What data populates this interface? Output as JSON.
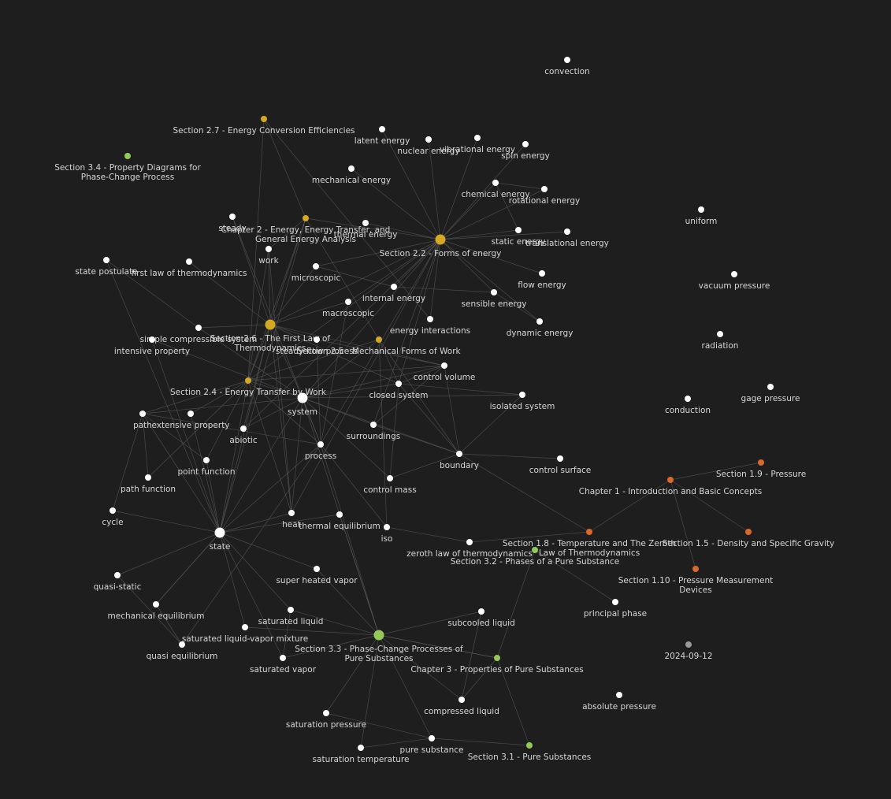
{
  "graph": {
    "colors": {
      "note": "#ffffff",
      "chapter2": "#d4a823",
      "chapter3": "#94c95a",
      "chapter1": "#d9692b",
      "tag": "#9a9a9a",
      "edge": "#5a5a5a",
      "label": "#d6d6d6",
      "background": "#1e1e1e"
    },
    "nodes": [
      {
        "id": "convection",
        "lines": [
          "convection"
        ],
        "group": "note"
      },
      {
        "id": "sec27",
        "lines": [
          "Section 2.7 - Energy Conversion Efficiencies"
        ],
        "group": "chapter2"
      },
      {
        "id": "latent",
        "lines": [
          "latent energy"
        ],
        "group": "note"
      },
      {
        "id": "nuclear",
        "lines": [
          "nuclear energy"
        ],
        "group": "note"
      },
      {
        "id": "vibrational",
        "lines": [
          "vibrational energy"
        ],
        "group": "note"
      },
      {
        "id": "spin",
        "lines": [
          "spin energy"
        ],
        "group": "note"
      },
      {
        "id": "sec34",
        "lines": [
          "Section 3.4 - Property Diagrams for",
          "Phase-Change Process"
        ],
        "group": "chapter3"
      },
      {
        "id": "mechanical_energy",
        "lines": [
          "mechanical energy"
        ],
        "group": "note"
      },
      {
        "id": "chemical",
        "lines": [
          "chemical energy"
        ],
        "group": "note"
      },
      {
        "id": "rotational",
        "lines": [
          "rotational energy"
        ],
        "group": "note"
      },
      {
        "id": "uniform",
        "lines": [
          "uniform"
        ],
        "group": "note"
      },
      {
        "id": "steady",
        "lines": [
          "steady"
        ],
        "group": "note"
      },
      {
        "id": "ch2",
        "lines": [
          "Chapter 2 - Energy, Energy Transfer, and",
          "General Energy Analysis"
        ],
        "group": "chapter2"
      },
      {
        "id": "thermal_energy",
        "lines": [
          "thermal energy"
        ],
        "group": "note"
      },
      {
        "id": "static",
        "lines": [
          "static energy"
        ],
        "group": "note"
      },
      {
        "id": "translational",
        "lines": [
          "translational energy"
        ],
        "group": "note"
      },
      {
        "id": "sec22",
        "lines": [
          "Section 2.2 - Forms of energy"
        ],
        "group": "chapter2",
        "big": true
      },
      {
        "id": "work",
        "lines": [
          "work"
        ],
        "group": "note"
      },
      {
        "id": "state_postulate",
        "lines": [
          "state postulate"
        ],
        "group": "note"
      },
      {
        "id": "first_law",
        "lines": [
          "first law of thermodynamics"
        ],
        "group": "note"
      },
      {
        "id": "microscopic",
        "lines": [
          "microscopic"
        ],
        "group": "note"
      },
      {
        "id": "flow_energy",
        "lines": [
          "flow energy"
        ],
        "group": "note"
      },
      {
        "id": "vacuum",
        "lines": [
          "vacuum pressure"
        ],
        "group": "note"
      },
      {
        "id": "internal",
        "lines": [
          "internal energy"
        ],
        "group": "note"
      },
      {
        "id": "sensible",
        "lines": [
          "sensible energy"
        ],
        "group": "note"
      },
      {
        "id": "macroscopic",
        "lines": [
          "macroscopic"
        ],
        "group": "note"
      },
      {
        "id": "energy_interactions",
        "lines": [
          "energy interactions"
        ],
        "group": "note"
      },
      {
        "id": "dynamic",
        "lines": [
          "dynamic energy"
        ],
        "group": "note"
      },
      {
        "id": "radiation",
        "lines": [
          "radiation"
        ],
        "group": "note"
      },
      {
        "id": "simple_comp",
        "lines": [
          "simple compressible system"
        ],
        "group": "note"
      },
      {
        "id": "sec26",
        "lines": [
          "Section 2.6 - The First Law of",
          "Thermodynamics"
        ],
        "group": "chapter2",
        "big": true
      },
      {
        "id": "steady_flow",
        "lines": [
          "steady-flow process"
        ],
        "group": "note"
      },
      {
        "id": "sec25",
        "lines": [
          "Section 2.5 - Mechanical Forms of Work"
        ],
        "group": "chapter2"
      },
      {
        "id": "intensive",
        "lines": [
          "intensive property"
        ],
        "group": "note"
      },
      {
        "id": "control_volume",
        "lines": [
          "control volume"
        ],
        "group": "note"
      },
      {
        "id": "sec24",
        "lines": [
          "Section 2.4 - Energy Transfer by Work"
        ],
        "group": "chapter2"
      },
      {
        "id": "closed_system",
        "lines": [
          "closed system"
        ],
        "group": "note"
      },
      {
        "id": "isolated",
        "lines": [
          "isolated system"
        ],
        "group": "note"
      },
      {
        "id": "gage",
        "lines": [
          "gage pressure"
        ],
        "group": "note"
      },
      {
        "id": "conduction",
        "lines": [
          "conduction"
        ],
        "group": "note"
      },
      {
        "id": "system",
        "lines": [
          "system"
        ],
        "group": "note",
        "big": true
      },
      {
        "id": "path",
        "lines": [
          "path"
        ],
        "group": "note"
      },
      {
        "id": "extensive",
        "lines": [
          "extensive property"
        ],
        "group": "note"
      },
      {
        "id": "abiotic",
        "lines": [
          "abiotic"
        ],
        "group": "note"
      },
      {
        "id": "surroundings",
        "lines": [
          "surroundings"
        ],
        "group": "note"
      },
      {
        "id": "process",
        "lines": [
          "process"
        ],
        "group": "note"
      },
      {
        "id": "boundary",
        "lines": [
          "boundary"
        ],
        "group": "note"
      },
      {
        "id": "control_surface",
        "lines": [
          "control surface"
        ],
        "group": "note"
      },
      {
        "id": "sec19",
        "lines": [
          "Section 1.9 - Pressure"
        ],
        "group": "chapter1"
      },
      {
        "id": "point_function",
        "lines": [
          "point function"
        ],
        "group": "note"
      },
      {
        "id": "ch1",
        "lines": [
          "Chapter 1 - Introduction and Basic Concepts"
        ],
        "group": "chapter1"
      },
      {
        "id": "path_function",
        "lines": [
          "path function"
        ],
        "group": "note"
      },
      {
        "id": "control_mass",
        "lines": [
          "control mass"
        ],
        "group": "note"
      },
      {
        "id": "cycle",
        "lines": [
          "cycle"
        ],
        "group": "note"
      },
      {
        "id": "heat",
        "lines": [
          "heat"
        ],
        "group": "note"
      },
      {
        "id": "thermal_eq",
        "lines": [
          "thermal equilibrium"
        ],
        "group": "note"
      },
      {
        "id": "iso",
        "lines": [
          "iso"
        ],
        "group": "note"
      },
      {
        "id": "state",
        "lines": [
          "state"
        ],
        "group": "note",
        "big": true
      },
      {
        "id": "sec18",
        "lines": [
          "Section 1.8 - Temperature and The Zeroth",
          "Law of Thermodynamics"
        ],
        "group": "chapter1"
      },
      {
        "id": "sec15",
        "lines": [
          "Section 1.5 - Density and Specific Gravity"
        ],
        "group": "chapter1"
      },
      {
        "id": "zeroth",
        "lines": [
          "zeroth law of thermodynamics"
        ],
        "group": "note"
      },
      {
        "id": "sec32",
        "lines": [
          "Section 3.2 - Phases of a Pure Substance"
        ],
        "group": "chapter3"
      },
      {
        "id": "quasi_static",
        "lines": [
          "quasi-static"
        ],
        "group": "note"
      },
      {
        "id": "superheated",
        "lines": [
          "super heated vapor"
        ],
        "group": "note"
      },
      {
        "id": "sec110",
        "lines": [
          "Section 1.10 - Pressure Measurement",
          "Devices"
        ],
        "group": "chapter1"
      },
      {
        "id": "mech_eq",
        "lines": [
          "mechanical equilibrium"
        ],
        "group": "note"
      },
      {
        "id": "principal",
        "lines": [
          "principal phase"
        ],
        "group": "note"
      },
      {
        "id": "sat_liquid",
        "lines": [
          "saturated liquid"
        ],
        "group": "note"
      },
      {
        "id": "subcooled",
        "lines": [
          "subcooled liquid"
        ],
        "group": "note"
      },
      {
        "id": "sat_mixture",
        "lines": [
          "saturated liquid-vapor mixture"
        ],
        "group": "note"
      },
      {
        "id": "sec33",
        "lines": [
          "Section 3.3 - Phase-Change Processes of",
          "Pure Substances"
        ],
        "group": "chapter3",
        "big": true
      },
      {
        "id": "quasi_eq",
        "lines": [
          "quasi equilibrium"
        ],
        "group": "note"
      },
      {
        "id": "date",
        "lines": [
          "2024-09-12"
        ],
        "group": "tag"
      },
      {
        "id": "sat_vapor",
        "lines": [
          "saturated vapor"
        ],
        "group": "note"
      },
      {
        "id": "ch3",
        "lines": [
          "Chapter 3 - Properties of Pure Substances"
        ],
        "group": "chapter3"
      },
      {
        "id": "absolute",
        "lines": [
          "absolute pressure"
        ],
        "group": "note"
      },
      {
        "id": "compressed",
        "lines": [
          "compressed liquid"
        ],
        "group": "note"
      },
      {
        "id": "sat_pressure",
        "lines": [
          "saturation pressure"
        ],
        "group": "note"
      },
      {
        "id": "pure_substance",
        "lines": [
          "pure substance"
        ],
        "group": "note"
      },
      {
        "id": "sec31",
        "lines": [
          "Section 3.1 - Pure Substances"
        ],
        "group": "chapter3"
      },
      {
        "id": "sat_temp",
        "lines": [
          "saturation temperature"
        ],
        "group": "note"
      }
    ]
  }
}
